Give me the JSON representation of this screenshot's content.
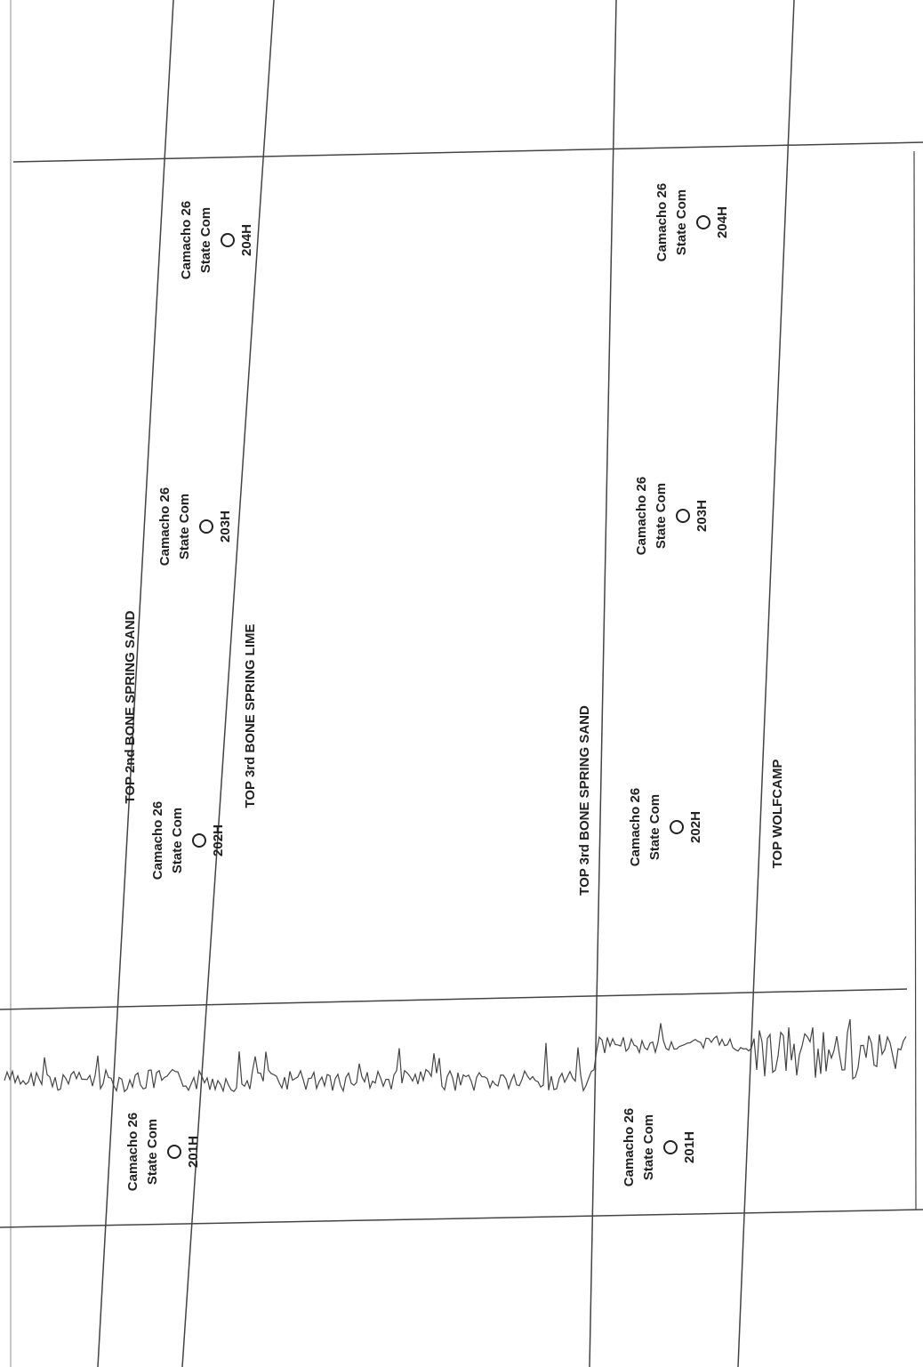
{
  "formations": [
    {
      "label": "TOP 2nd BONE SPRING SAND"
    },
    {
      "label": "TOP 3rd BONE SPRING LIME"
    },
    {
      "label": "TOP 3rd BONE SPRING SAND"
    },
    {
      "label": "TOP WOLFCAMP"
    }
  ],
  "wells": [
    {
      "name": "Camacho 26",
      "sub": "State Com",
      "number": "204H"
    },
    {
      "name": "Camacho 26",
      "sub": "State Com",
      "number": "203H"
    },
    {
      "name": "Camacho 26",
      "sub": "State Com",
      "number": "202H"
    },
    {
      "name": "Camacho 26",
      "sub": "State Com",
      "number": "201H"
    },
    {
      "name": "Camacho 26",
      "sub": "State Com",
      "number": "204H"
    },
    {
      "name": "Camacho 26",
      "sub": "State Com",
      "number": "203H"
    },
    {
      "name": "Camacho 26",
      "sub": "State Com",
      "number": "202H"
    },
    {
      "name": "Camacho 26",
      "sub": "State Com",
      "number": "201H"
    }
  ]
}
